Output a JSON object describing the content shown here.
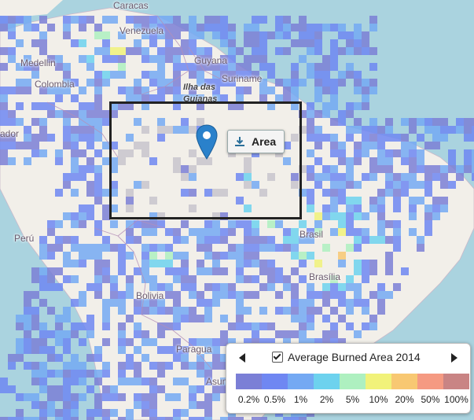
{
  "map": {
    "labels": [
      {
        "id": "caracas",
        "text": "Caracas"
      },
      {
        "id": "venezuela",
        "text": "Venezuela"
      },
      {
        "id": "medellin",
        "text": "Medellin"
      },
      {
        "id": "colombia",
        "text": "Colombia"
      },
      {
        "id": "guyana",
        "text": "Guyana"
      },
      {
        "id": "suriname",
        "text": "Suriname"
      },
      {
        "id": "ilha",
        "text": "Ilha das"
      },
      {
        "id": "guianas",
        "text": "Guianas"
      },
      {
        "id": "ecuador",
        "text": "ador"
      },
      {
        "id": "peru",
        "text": "Perú"
      },
      {
        "id": "brasil",
        "text": "Brasil"
      },
      {
        "id": "brasilia",
        "text": "Brasília"
      },
      {
        "id": "bolivia",
        "text": "Bolivia"
      },
      {
        "id": "paraguay",
        "text": "Paragua"
      },
      {
        "id": "asuncion",
        "text": "Asun"
      }
    ],
    "colors": {
      "ocean": "#aad3df",
      "land": "#f2efe9",
      "selection_border": "#222222",
      "marker": "#2a81cb"
    }
  },
  "area_button": {
    "label": "Area",
    "icon": "download-icon"
  },
  "legend": {
    "title": "Average Burned Area 2014",
    "checked": true,
    "prev_icon": "triangle-left-icon",
    "next_icon": "triangle-right-icon",
    "classes": [
      {
        "label": "0.2%",
        "color": "#7b7fd6"
      },
      {
        "label": "0.5%",
        "color": "#6f87f2"
      },
      {
        "label": "1%",
        "color": "#74a9f3"
      },
      {
        "label": "2%",
        "color": "#6dd2ee"
      },
      {
        "label": "5%",
        "color": "#aef0c0"
      },
      {
        "label": "10%",
        "color": "#f1f27a"
      },
      {
        "label": "20%",
        "color": "#f8c872"
      },
      {
        "label": "50%",
        "color": "#f59a82"
      },
      {
        "label": "100%",
        "color": "#c98484"
      }
    ]
  }
}
